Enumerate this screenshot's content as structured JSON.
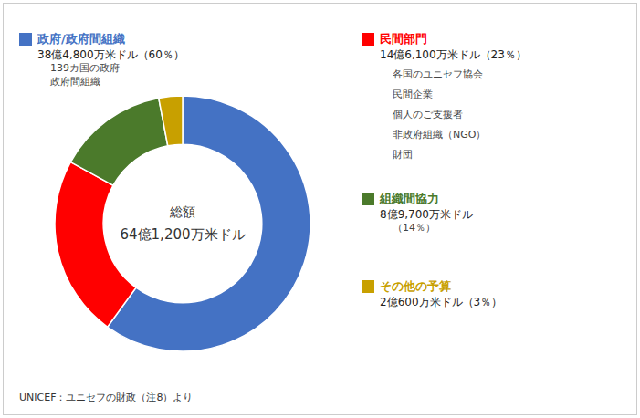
{
  "chart_data": {
    "type": "donut",
    "categories": [
      "政府/政府間組織",
      "民間部門",
      "組織間協力",
      "その他の予算"
    ],
    "values": [
      60,
      23,
      14,
      3
    ],
    "colors": [
      "#4472C4",
      "#FF0000",
      "#4B7A2B",
      "#C8A000"
    ],
    "details": [
      [
        "38億4,800万米ドル（60％）",
        "139カ国の政府",
        "政府間組織"
      ],
      [
        "14億6,100万米ドル（23％）",
        "各国のユニセフ協会",
        "民間企業",
        "個人のご支援者",
        "非政府組織（NGO）",
        "財団"
      ],
      [
        "8億9,700万米ドル",
        "（14％）"
      ],
      [
        "2億600万米ドル（3％）"
      ]
    ],
    "center_text": [
      "総額",
      "64億1,200万米ドル"
    ],
    "footnote": "UNICEF：ユニセフの財政（注8）より"
  }
}
